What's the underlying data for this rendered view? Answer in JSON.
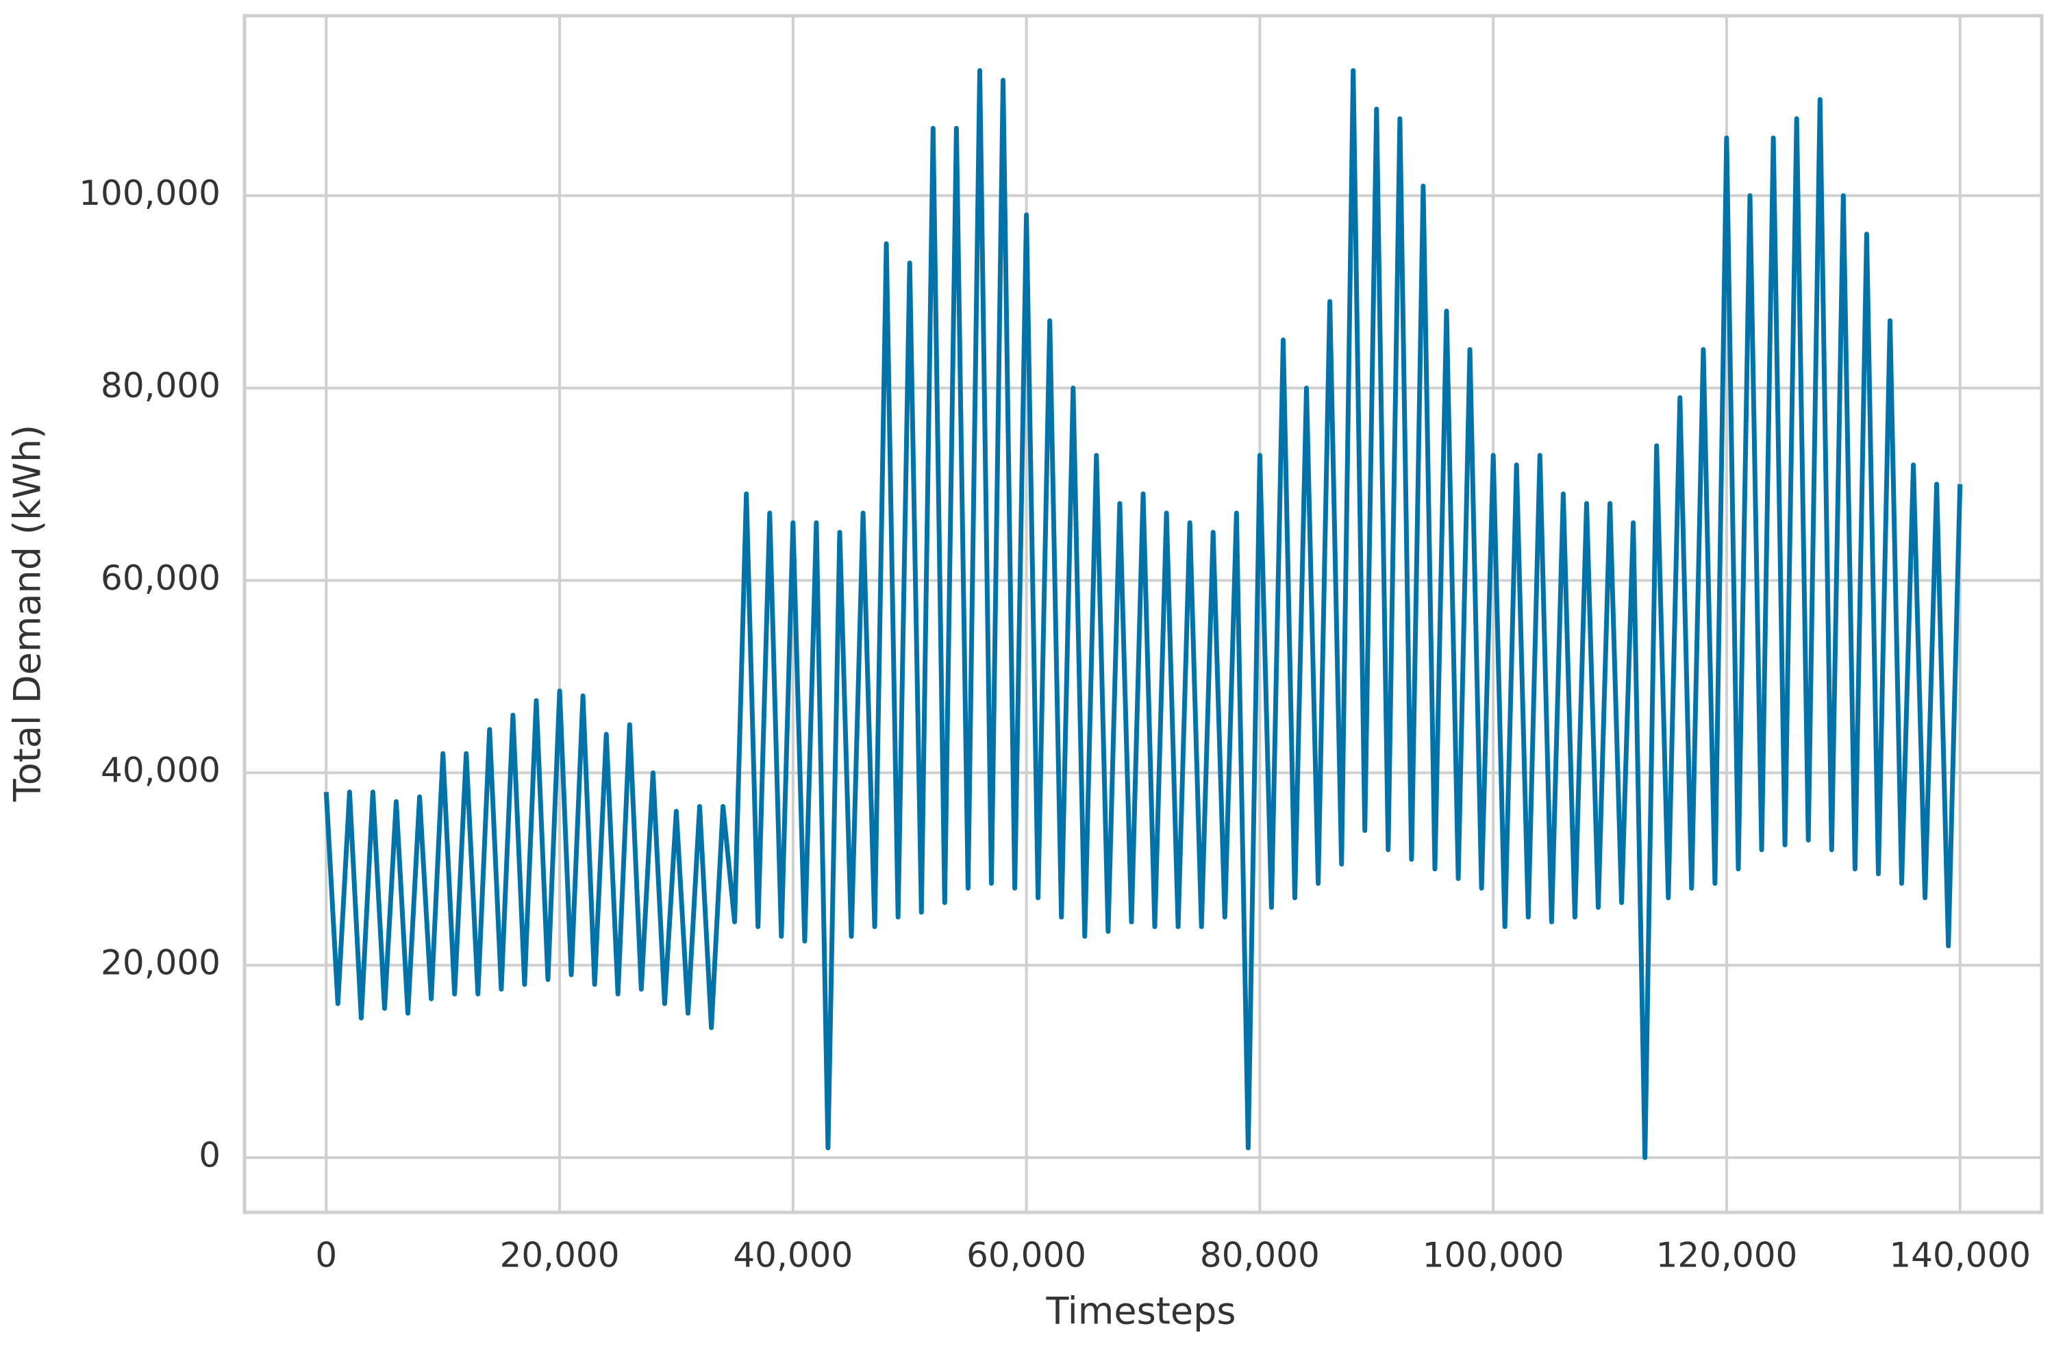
{
  "chart_data": {
    "type": "line",
    "xlabel": "Timesteps",
    "ylabel": "Total Demand (kWh)",
    "color": "#0173a8",
    "grid": true,
    "xlim": [
      -7000,
      147000
    ],
    "ylim": [
      -5700,
      118700
    ],
    "xticks": [
      0,
      {
        "value": 20000,
        "label": "20,000"
      },
      {
        "value": 40000,
        "label": "40,000"
      },
      {
        "value": 60000,
        "label": "60,000"
      },
      {
        "value": 80000,
        "label": "80,000"
      },
      {
        "value": 100000,
        "label": "100,000"
      },
      {
        "value": 120000,
        "label": "120,000"
      },
      {
        "value": 140000,
        "label": "140,000"
      }
    ],
    "yticks": [
      0,
      {
        "value": 20000,
        "label": "20,000"
      },
      {
        "value": 40000,
        "label": "40,000"
      },
      {
        "value": 60000,
        "label": "60,000"
      },
      {
        "value": 80000,
        "label": "80,000"
      },
      {
        "value": 100000,
        "label": "100,000"
      }
    ],
    "x": [
      0,
      1000,
      2000,
      3000,
      4000,
      5000,
      6000,
      7000,
      8000,
      9000,
      10000,
      11000,
      12000,
      13000,
      14000,
      15000,
      16000,
      17000,
      18000,
      19000,
      20000,
      21000,
      22000,
      23000,
      24000,
      25000,
      26000,
      27000,
      28000,
      29000,
      30000,
      31000,
      32000,
      33000,
      34000,
      35000,
      36000,
      37000,
      38000,
      39000,
      40000,
      41000,
      42000,
      43000,
      44000,
      45000,
      46000,
      47000,
      48000,
      49000,
      50000,
      51000,
      52000,
      53000,
      54000,
      55000,
      56000,
      57000,
      58000,
      59000,
      60000,
      61000,
      62000,
      63000,
      64000,
      65000,
      66000,
      67000,
      68000,
      69000,
      70000,
      71000,
      72000,
      73000,
      74000,
      75000,
      76000,
      77000,
      78000,
      79000,
      80000,
      81000,
      82000,
      83000,
      84000,
      85000,
      86000,
      87000,
      88000,
      89000,
      90000,
      91000,
      92000,
      93000,
      94000,
      95000,
      96000,
      97000,
      98000,
      99000,
      100000,
      101000,
      102000,
      103000,
      104000,
      105000,
      106000,
      107000,
      108000,
      109000,
      110000,
      111000,
      112000,
      113000,
      114000,
      115000,
      116000,
      117000,
      118000,
      119000,
      120000,
      121000,
      122000,
      123000,
      124000,
      125000,
      126000,
      127000,
      128000,
      129000,
      130000,
      131000,
      132000,
      133000,
      134000,
      135000,
      136000,
      137000,
      138000,
      139000,
      140000
    ],
    "values": [
      38000,
      16000,
      38000,
      14500,
      38000,
      15500,
      37000,
      15000,
      37500,
      16500,
      42000,
      17000,
      42000,
      17000,
      44500,
      17500,
      46000,
      18000,
      47500,
      18500,
      48500,
      19000,
      48000,
      18000,
      44000,
      17000,
      45000,
      17500,
      40000,
      16000,
      36000,
      15000,
      36500,
      13500,
      36500,
      24500,
      69000,
      24000,
      67000,
      23000,
      66000,
      22500,
      66000,
      1000,
      65000,
      23000,
      67000,
      24000,
      95000,
      25000,
      93000,
      25500,
      107000,
      26500,
      107000,
      28000,
      113000,
      28500,
      112000,
      28000,
      98000,
      27000,
      87000,
      25000,
      80000,
      23000,
      73000,
      23500,
      68000,
      24500,
      69000,
      24000,
      67000,
      24000,
      66000,
      24000,
      65000,
      25000,
      67000,
      1000,
      73000,
      26000,
      85000,
      27000,
      80000,
      28500,
      89000,
      30500,
      113000,
      34000,
      109000,
      32000,
      108000,
      31000,
      101000,
      30000,
      88000,
      29000,
      84000,
      28000,
      73000,
      24000,
      72000,
      25000,
      73000,
      24500,
      69000,
      25000,
      68000,
      26000,
      68000,
      26500,
      66000,
      0,
      74000,
      27000,
      79000,
      28000,
      84000,
      28500,
      106000,
      30000,
      100000,
      32000,
      106000,
      32500,
      108000,
      33000,
      110000,
      32000,
      100000,
      30000,
      96000,
      29500,
      87000,
      28500,
      72000,
      27000,
      70000,
      22000,
      70000
    ]
  }
}
